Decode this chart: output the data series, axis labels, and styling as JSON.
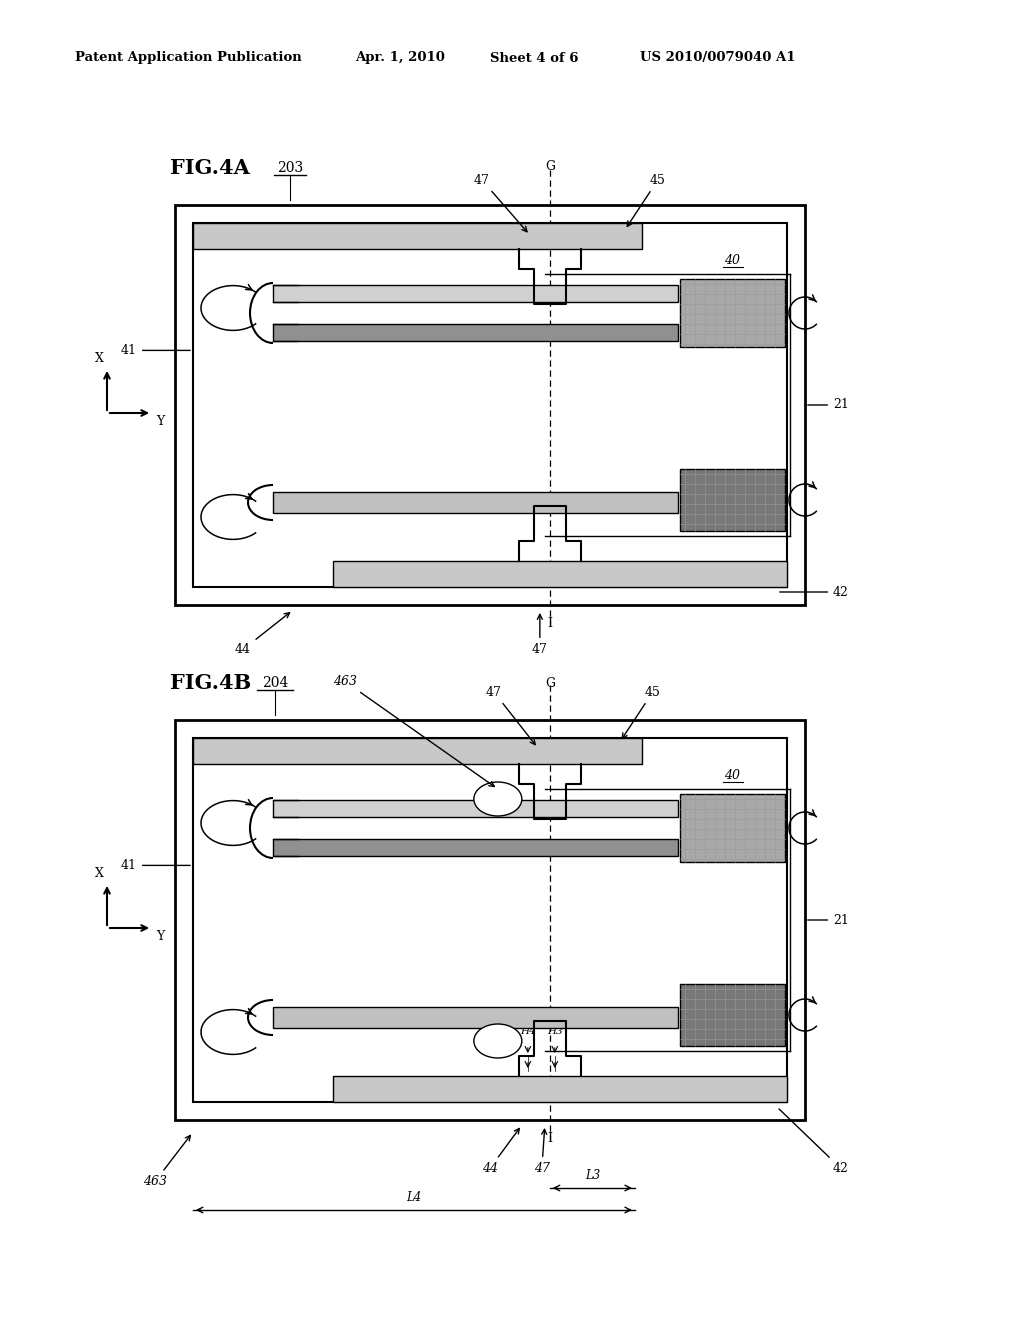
{
  "bg_color": "#ffffff",
  "header_text": "Patent Application Publication",
  "header_date": "Apr. 1, 2010",
  "header_sheet": "Sheet 4 of 6",
  "header_patent": "US 2010/0079040 A1",
  "fig4a_label": "FIG.4A",
  "fig4b_label": "FIG.4B",
  "gray_light": "#c8c8c8",
  "gray_medium": "#a8a8a8",
  "gray_dark": "#888888",
  "gray_hatched_light": "#b8b8b8",
  "gray_hatched_dark": "#787878",
  "line_color": "#000000",
  "text_color": "#000000"
}
